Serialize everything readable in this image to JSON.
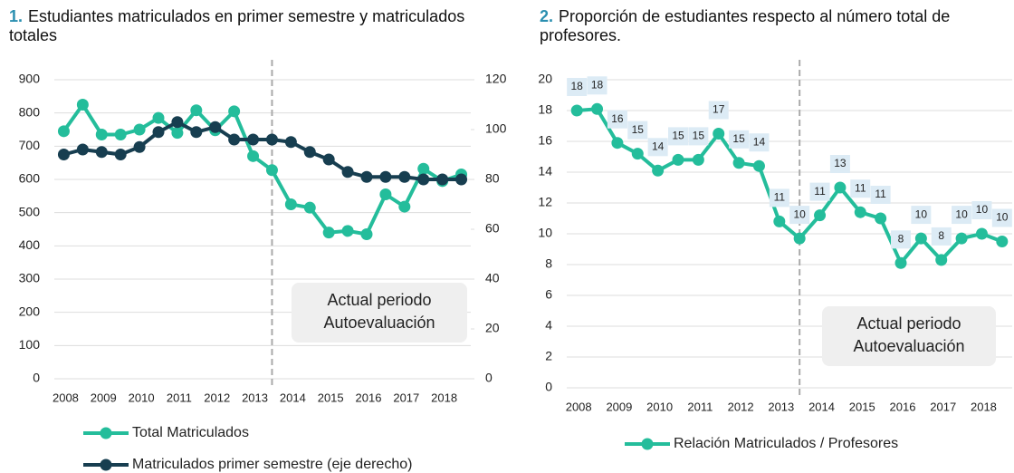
{
  "chart_data": [
    {
      "type": "line",
      "number": "1.",
      "title": "Estudiantes matriculados en primer semestre y matriculados totales",
      "categories": [
        "2008",
        null,
        "2009",
        null,
        "2010",
        null,
        "2011",
        null,
        "2012",
        null,
        "2013",
        null,
        "2014",
        null,
        "2015",
        null,
        "2016",
        null,
        "2017",
        null,
        "2018",
        null
      ],
      "series": [
        {
          "name": "Total Matriculados",
          "color": "#24bd9b",
          "values": [
            745,
            825,
            735,
            735,
            750,
            785,
            740,
            808,
            748,
            805,
            670,
            628,
            525,
            515,
            440,
            445,
            435,
            555,
            518,
            632,
            595,
            615
          ]
        },
        {
          "name": "Matriculados primer semestre (eje derecho)",
          "color": "#173e50",
          "axis": "y2",
          "values": [
            90,
            92,
            91,
            90,
            93,
            99,
            103,
            99,
            101,
            96,
            96,
            96,
            95,
            91,
            88,
            83,
            81,
            81,
            81,
            80,
            80,
            80
          ]
        }
      ],
      "ylim": [
        0,
        900
      ],
      "yticks": [
        0,
        100,
        200,
        300,
        400,
        500,
        600,
        700,
        800,
        900
      ],
      "y2lim": [
        0,
        120
      ],
      "y2ticks": [
        0,
        20,
        40,
        60,
        80,
        100,
        120
      ],
      "annotation": [
        "Actual periodo",
        "Autoevaluación"
      ],
      "grid": true
    },
    {
      "type": "line",
      "number": "2.",
      "title": "Proporción de estudiantes respecto al número total de profesores.",
      "categories": [
        "2008",
        null,
        "2009",
        null,
        "2010",
        null,
        "2011",
        null,
        "2012",
        null,
        "2013",
        null,
        "2014",
        null,
        "2015",
        null,
        "2016",
        null,
        "2017",
        null,
        "2018",
        null
      ],
      "series": [
        {
          "name": "Relación Matriculados / Profesores",
          "color": "#24bd9b",
          "values": [
            18,
            18.1,
            15.9,
            15.2,
            14.1,
            14.8,
            14.8,
            16.5,
            14.6,
            14.4,
            10.8,
            9.7,
            11.2,
            13,
            11.4,
            11,
            8.1,
            9.7,
            8.3,
            9.7,
            10,
            9.5
          ],
          "value_labels": [
            "18",
            "18",
            "16",
            "15",
            "14",
            "15",
            "15",
            "17",
            "15",
            "14",
            "11",
            "10",
            "11",
            "13",
            "11",
            "11",
            "8",
            "10",
            "8",
            "10",
            "10",
            "10"
          ]
        }
      ],
      "ylim": [
        0,
        20
      ],
      "yticks": [
        0,
        2,
        4,
        6,
        8,
        10,
        12,
        14,
        16,
        18,
        20
      ],
      "annotation": [
        "Actual periodo",
        "Autoevaluación"
      ],
      "grid": true
    }
  ]
}
